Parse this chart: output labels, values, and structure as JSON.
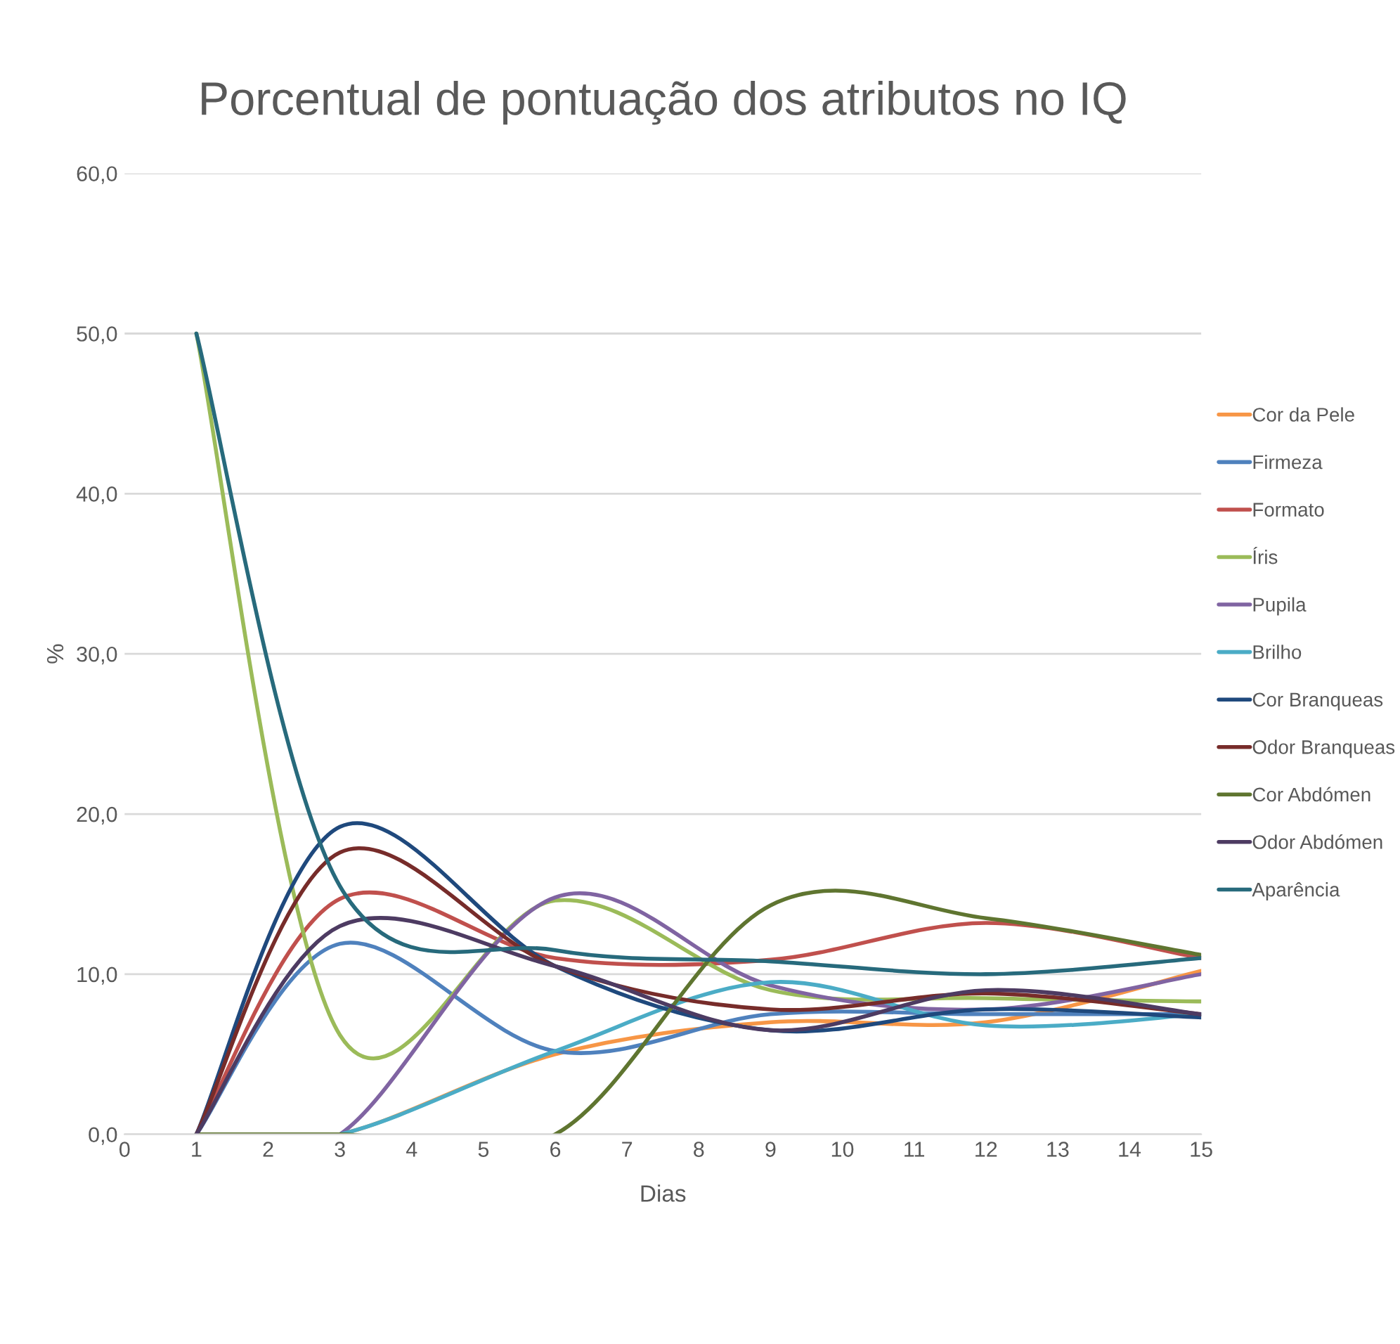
{
  "chart_data": {
    "type": "line",
    "title": "Porcentual de pontuação dos atributos no IQ",
    "xlabel": "Dias",
    "ylabel": "%",
    "x": [
      1,
      3,
      6,
      9,
      12,
      15
    ],
    "series": [
      {
        "name": "Cor da Pele",
        "color": "#f79646",
        "values": [
          0,
          0,
          5.0,
          7.0,
          7.0,
          10.2
        ]
      },
      {
        "name": "Firmeza",
        "color": "#4f81bd",
        "values": [
          0,
          11.9,
          5.2,
          7.5,
          7.5,
          7.5
        ]
      },
      {
        "name": "Formato",
        "color": "#c0504d",
        "values": [
          0,
          14.7,
          11.0,
          10.9,
          13.2,
          11.0
        ]
      },
      {
        "name": "Íris",
        "color": "#9bbb59",
        "values": [
          50,
          6.2,
          14.6,
          9.0,
          8.5,
          8.3
        ]
      },
      {
        "name": "Pupila",
        "color": "#8064a2",
        "values": [
          0,
          0,
          14.8,
          9.3,
          7.8,
          10.0
        ]
      },
      {
        "name": "Brilho",
        "color": "#4bacc6",
        "values": [
          0,
          0,
          5.2,
          9.5,
          6.8,
          7.5
        ]
      },
      {
        "name": "Cor Branqueas",
        "color": "#1f497d",
        "values": [
          0,
          19.2,
          10.5,
          6.5,
          7.8,
          7.3
        ]
      },
      {
        "name": "Odor Branqueas",
        "color": "#772c2a",
        "values": [
          0,
          17.6,
          10.5,
          7.8,
          8.8,
          7.5
        ]
      },
      {
        "name": "Cor Abdómen",
        "color": "#5f7530",
        "values": [
          0,
          0,
          0,
          14.3,
          13.5,
          11.2
        ]
      },
      {
        "name": "Odor Abdómen",
        "color": "#4d3b62",
        "values": [
          0,
          13.0,
          10.5,
          6.5,
          9.0,
          7.5
        ]
      },
      {
        "name": "Aparência",
        "color": "#276a7c",
        "values": [
          50,
          15.5,
          11.5,
          10.8,
          10.0,
          11.0
        ]
      }
    ],
    "xlim": [
      0,
      15
    ],
    "xticks": [
      0,
      1,
      2,
      3,
      4,
      5,
      6,
      7,
      8,
      9,
      10,
      11,
      12,
      13,
      14,
      15
    ],
    "ylim": [
      0,
      60
    ],
    "yticks": [
      {
        "value": 0,
        "label": "0,0"
      },
      {
        "value": 10,
        "label": "10,0"
      },
      {
        "value": 20,
        "label": "20,0"
      },
      {
        "value": 30,
        "label": "30,0"
      },
      {
        "value": 40,
        "label": "40,0"
      },
      {
        "value": 50,
        "label": "50,0"
      },
      {
        "value": 60,
        "label": "60,0"
      }
    ],
    "grid": "y",
    "legend": "right",
    "line_style": "solid",
    "marker": "none"
  }
}
